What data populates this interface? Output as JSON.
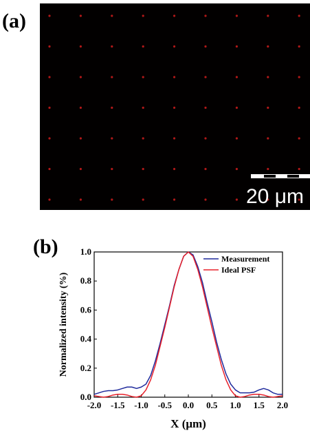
{
  "panel_a": {
    "label": "(a)",
    "scale_bar_label": "20 μm"
  },
  "chart_data": {
    "type": "line",
    "label": "(b)",
    "x_label": "X (μm)",
    "y_label": "Normalized intensity (%)",
    "x": [
      -2.0,
      -1.9,
      -1.8,
      -1.7,
      -1.6,
      -1.5,
      -1.4,
      -1.3,
      -1.2,
      -1.1,
      -1.0,
      -0.9,
      -0.8,
      -0.7,
      -0.6,
      -0.5,
      -0.4,
      -0.3,
      -0.2,
      -0.1,
      0.0,
      0.1,
      0.2,
      0.3,
      0.4,
      0.5,
      0.6,
      0.7,
      0.8,
      0.9,
      1.0,
      1.1,
      1.2,
      1.3,
      1.4,
      1.5,
      1.6,
      1.7,
      1.8,
      1.9,
      2.0
    ],
    "series": [
      {
        "name": "Measurement",
        "color": "#1f2a9c",
        "values": [
          0.02,
          0.03,
          0.04,
          0.045,
          0.045,
          0.05,
          0.06,
          0.07,
          0.07,
          0.06,
          0.07,
          0.09,
          0.15,
          0.25,
          0.37,
          0.5,
          0.63,
          0.77,
          0.88,
          0.97,
          1.0,
          0.98,
          0.9,
          0.79,
          0.65,
          0.52,
          0.38,
          0.26,
          0.16,
          0.09,
          0.05,
          0.03,
          0.03,
          0.03,
          0.035,
          0.05,
          0.06,
          0.05,
          0.03,
          0.02,
          0.02
        ]
      },
      {
        "name": "Ideal PSF",
        "color": "#e8202a",
        "values": [
          0.01,
          0.005,
          0.0,
          0.005,
          0.015,
          0.02,
          0.02,
          0.015,
          0.005,
          0.0,
          0.01,
          0.05,
          0.12,
          0.22,
          0.35,
          0.48,
          0.62,
          0.76,
          0.88,
          0.97,
          1.0,
          0.97,
          0.88,
          0.76,
          0.62,
          0.48,
          0.35,
          0.22,
          0.12,
          0.05,
          0.01,
          0.0,
          0.005,
          0.015,
          0.02,
          0.02,
          0.015,
          0.005,
          0.0,
          0.005,
          0.01
        ]
      }
    ],
    "xlim": [
      -2.0,
      2.0
    ],
    "xticks": [
      {
        "value": -2,
        "label": "-2.0"
      },
      {
        "value": -1.5,
        "label": "-1.5"
      },
      {
        "value": -1,
        "label": "-1.0"
      },
      {
        "value": -0.5,
        "label": "-0.5"
      },
      {
        "value": 0,
        "label": "0.0"
      },
      {
        "value": 0.5,
        "label": "0.5"
      },
      {
        "value": 1,
        "label": "1.0"
      },
      {
        "value": 1.5,
        "label": "1.5"
      },
      {
        "value": 2,
        "label": "2.0"
      }
    ],
    "ylim": [
      0.0,
      1.0
    ],
    "yticks": [
      {
        "value": 0,
        "label": "0.0"
      },
      {
        "value": 0.2,
        "label": "0.2"
      },
      {
        "value": 0.4,
        "label": "0.4"
      },
      {
        "value": 0.6,
        "label": "0.6"
      },
      {
        "value": 0.8,
        "label": "0.8"
      },
      {
        "value": 1,
        "label": "1.0"
      }
    ],
    "legend": "upper right",
    "grid": false
  }
}
